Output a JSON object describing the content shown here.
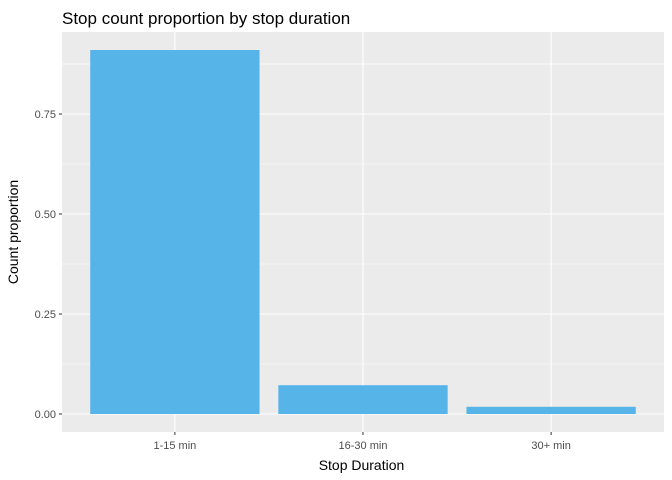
{
  "chart_data": {
    "type": "bar",
    "title": "Stop count proportion by stop duration",
    "xlabel": "Stop Duration",
    "ylabel": "Count proportion",
    "categories": [
      "1-15 min",
      "16-30 min",
      "30+ min"
    ],
    "values": [
      0.91,
      0.072,
      0.018
    ],
    "ylim": [
      -0.045,
      0.955
    ],
    "yticks": [
      0.0,
      0.25,
      0.5,
      0.75
    ],
    "ytick_labels": [
      "0.00",
      "0.25",
      "0.50",
      "0.75"
    ],
    "grid": true,
    "legend": "none",
    "bar_color": "#56B4E9",
    "panel_background": "#EBEBEB",
    "grid_color": "#FFFFFF"
  }
}
